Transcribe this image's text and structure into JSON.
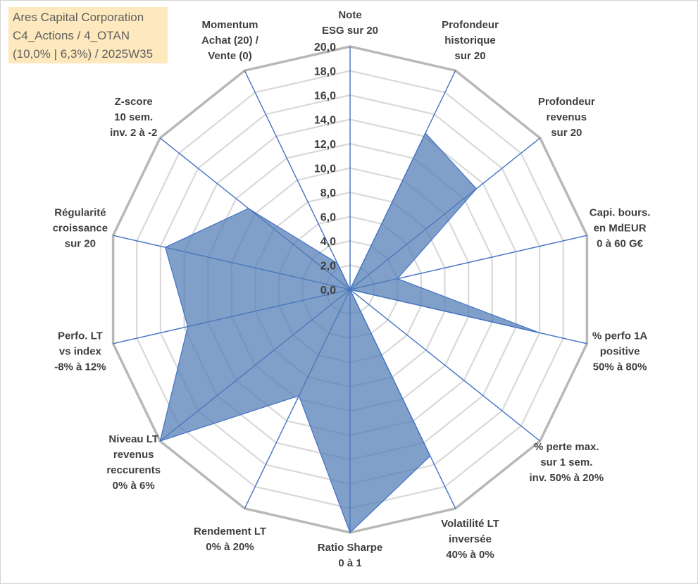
{
  "title_box": {
    "line1": "Ares Capital Corporation",
    "line2": "C4_Actions / 4_OTAN",
    "line3": "(10,0% | 6,3%) / 2025W35"
  },
  "colors": {
    "fill": "#4f7cb5",
    "fill_opacity": 0.72,
    "spoke": "#4472c4",
    "grid": "#b8b8b8",
    "grid_minor": "#d9d9d9",
    "title_bg": "#fde9bd"
  },
  "chart_data": {
    "type": "radar",
    "rmin": 0,
    "rmax": 20,
    "tick_step": 2,
    "tick_labels": [
      "0,0",
      "2,0",
      "4,0",
      "6,0",
      "8,0",
      "10,0",
      "12,0",
      "14,0",
      "16,0",
      "18,0",
      "20,0"
    ],
    "axes": [
      [
        "Note",
        "ESG sur 20"
      ],
      [
        "Profondeur",
        "historique",
        "sur 20"
      ],
      [
        "Profondeur",
        "revenus",
        "sur 20"
      ],
      [
        "Capi. bours.",
        "en MdEUR",
        "0 à 60 G€"
      ],
      [
        "% perfo 1A",
        "positive",
        "50% à 80%"
      ],
      [
        "% perte max.",
        "sur 1 sem.",
        "inv. 50% à 20%"
      ],
      [
        "Volatilité LT",
        "inversée",
        "40% à 0%"
      ],
      [
        "Ratio Sharpe",
        "0 à 1"
      ],
      [
        "Rendement LT",
        "0% à 20%"
      ],
      [
        "Niveau LT",
        "revenus",
        "reccurents",
        "0% à 6%"
      ],
      [
        "Perfo. LT",
        "vs index",
        "-8% à 12%"
      ],
      [
        "Régularité",
        "croissance",
        "sur 20"
      ],
      [
        "Z-score",
        "10 sem.",
        "inv. 2 à -2"
      ],
      [
        "Momentum",
        "Achat (20) /",
        "Vente (0)"
      ]
    ],
    "series": [
      {
        "values": [
          0,
          14.3,
          13.3,
          4,
          16,
          0,
          15.2,
          20,
          9.7,
          20,
          13.7,
          15.6,
          10.7,
          2.4
        ]
      }
    ]
  }
}
